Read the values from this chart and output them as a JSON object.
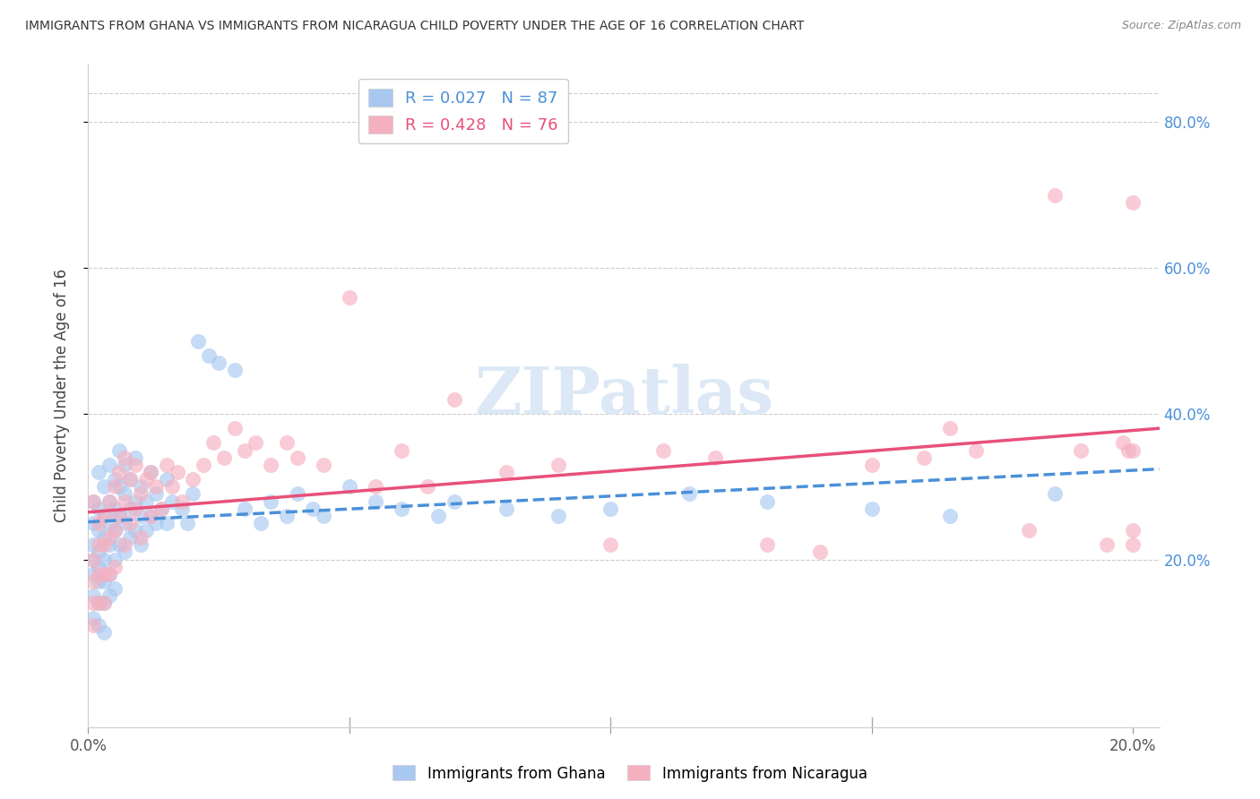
{
  "title": "IMMIGRANTS FROM GHANA VS IMMIGRANTS FROM NICARAGUA CHILD POVERTY UNDER THE AGE OF 16 CORRELATION CHART",
  "source": "Source: ZipAtlas.com",
  "ylabel": "Child Poverty Under the Age of 16",
  "xlim": [
    0.0,
    0.205
  ],
  "ylim": [
    -0.03,
    0.88
  ],
  "xticks": [
    0.0,
    0.05,
    0.1,
    0.15,
    0.2
  ],
  "xtick_labels": [
    "0.0%",
    "",
    "",
    "",
    "20.0%"
  ],
  "yticks": [
    0.2,
    0.4,
    0.6,
    0.8
  ],
  "ytick_labels": [
    "20.0%",
    "40.0%",
    "60.0%",
    "80.0%"
  ],
  "ghana_color": "#a8c8f0",
  "nicaragua_color": "#f5b0c0",
  "ghana_R": 0.027,
  "ghana_N": 87,
  "nicaragua_R": 0.428,
  "nicaragua_N": 76,
  "ghana_trend_color": "#4a90d9",
  "nicaragua_trend_color": "#e8507a",
  "watermark_color": "#dce8f5",
  "ghana_points_x": [
    0.001,
    0.001,
    0.001,
    0.001,
    0.001,
    0.001,
    0.001,
    0.002,
    0.002,
    0.002,
    0.002,
    0.002,
    0.002,
    0.002,
    0.002,
    0.003,
    0.003,
    0.003,
    0.003,
    0.003,
    0.003,
    0.003,
    0.004,
    0.004,
    0.004,
    0.004,
    0.004,
    0.004,
    0.005,
    0.005,
    0.005,
    0.005,
    0.005,
    0.006,
    0.006,
    0.006,
    0.006,
    0.007,
    0.007,
    0.007,
    0.007,
    0.008,
    0.008,
    0.008,
    0.009,
    0.009,
    0.009,
    0.01,
    0.01,
    0.01,
    0.011,
    0.011,
    0.012,
    0.012,
    0.013,
    0.013,
    0.014,
    0.015,
    0.015,
    0.016,
    0.018,
    0.019,
    0.02,
    0.021,
    0.023,
    0.025,
    0.028,
    0.03,
    0.033,
    0.035,
    0.038,
    0.04,
    0.043,
    0.045,
    0.05,
    0.055,
    0.06,
    0.067,
    0.07,
    0.08,
    0.09,
    0.1,
    0.115,
    0.13,
    0.15,
    0.165,
    0.185
  ],
  "ghana_points_y": [
    0.22,
    0.25,
    0.2,
    0.18,
    0.28,
    0.15,
    0.12,
    0.24,
    0.27,
    0.21,
    0.19,
    0.17,
    0.14,
    0.11,
    0.32,
    0.26,
    0.23,
    0.2,
    0.17,
    0.14,
    0.1,
    0.3,
    0.28,
    0.25,
    0.22,
    0.18,
    0.15,
    0.33,
    0.31,
    0.27,
    0.24,
    0.2,
    0.16,
    0.35,
    0.3,
    0.26,
    0.22,
    0.33,
    0.29,
    0.25,
    0.21,
    0.31,
    0.27,
    0.23,
    0.34,
    0.28,
    0.24,
    0.3,
    0.26,
    0.22,
    0.28,
    0.24,
    0.32,
    0.26,
    0.29,
    0.25,
    0.27,
    0.31,
    0.25,
    0.28,
    0.27,
    0.25,
    0.29,
    0.5,
    0.48,
    0.47,
    0.46,
    0.27,
    0.25,
    0.28,
    0.26,
    0.29,
    0.27,
    0.26,
    0.3,
    0.28,
    0.27,
    0.26,
    0.28,
    0.27,
    0.26,
    0.27,
    0.29,
    0.28,
    0.27,
    0.26,
    0.29
  ],
  "nicaragua_points_x": [
    0.001,
    0.001,
    0.001,
    0.001,
    0.001,
    0.002,
    0.002,
    0.002,
    0.002,
    0.003,
    0.003,
    0.003,
    0.003,
    0.004,
    0.004,
    0.004,
    0.005,
    0.005,
    0.005,
    0.006,
    0.006,
    0.007,
    0.007,
    0.007,
    0.008,
    0.008,
    0.009,
    0.009,
    0.01,
    0.01,
    0.011,
    0.012,
    0.012,
    0.013,
    0.014,
    0.015,
    0.016,
    0.017,
    0.018,
    0.02,
    0.022,
    0.024,
    0.026,
    0.028,
    0.03,
    0.032,
    0.035,
    0.038,
    0.04,
    0.045,
    0.05,
    0.055,
    0.06,
    0.065,
    0.07,
    0.08,
    0.09,
    0.1,
    0.11,
    0.12,
    0.13,
    0.14,
    0.15,
    0.16,
    0.165,
    0.17,
    0.18,
    0.185,
    0.19,
    0.195,
    0.198,
    0.199,
    0.2,
    0.2,
    0.2,
    0.2
  ],
  "nicaragua_points_y": [
    0.2,
    0.17,
    0.14,
    0.11,
    0.28,
    0.22,
    0.18,
    0.14,
    0.25,
    0.26,
    0.22,
    0.18,
    0.14,
    0.28,
    0.23,
    0.18,
    0.3,
    0.24,
    0.19,
    0.32,
    0.26,
    0.34,
    0.28,
    0.22,
    0.31,
    0.25,
    0.33,
    0.27,
    0.29,
    0.23,
    0.31,
    0.32,
    0.26,
    0.3,
    0.27,
    0.33,
    0.3,
    0.32,
    0.28,
    0.31,
    0.33,
    0.36,
    0.34,
    0.38,
    0.35,
    0.36,
    0.33,
    0.36,
    0.34,
    0.33,
    0.56,
    0.3,
    0.35,
    0.3,
    0.42,
    0.32,
    0.33,
    0.22,
    0.35,
    0.34,
    0.22,
    0.21,
    0.33,
    0.34,
    0.38,
    0.35,
    0.24,
    0.7,
    0.35,
    0.22,
    0.36,
    0.35,
    0.69,
    0.22,
    0.35,
    0.24
  ]
}
